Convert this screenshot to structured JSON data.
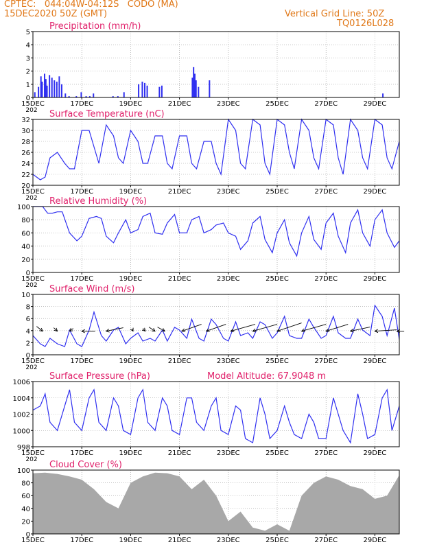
{
  "header": {
    "line1": "CPTEC:   044:04W-04:12S   CODO (MA)",
    "line2": "15DEC2020 50Z (GMT)",
    "right1": "Vertical Grid Line: 50Z",
    "right2": "TQ0126L028"
  },
  "colors": {
    "header": "#e07818",
    "title": "#e0206a",
    "line": "#2f2ff0",
    "bar": "#2f2ff0",
    "cloud": "#a8a8a8",
    "arrow": "#000000",
    "grid": "#999999"
  },
  "x_ticks": [
    "15DEC",
    "17DEC",
    "19DEC",
    "21DEC",
    "23DEC",
    "25DEC",
    "27DEC",
    "29DEC"
  ],
  "x_year_stub": "202",
  "chart_data": [
    {
      "type": "bar",
      "title": "Precipitation (mm/h)",
      "ylim": [
        0,
        5
      ],
      "yticks": [
        "0",
        "1",
        "2",
        "3",
        "4",
        "5"
      ],
      "xlim": [
        0,
        15
      ],
      "x": [
        0.05,
        0.2,
        0.3,
        0.35,
        0.45,
        0.5,
        0.55,
        0.65,
        0.75,
        0.85,
        0.95,
        1.05,
        1.15,
        1.3,
        1.45,
        1.75,
        1.95,
        2.15,
        2.3,
        2.45,
        3.25,
        3.45,
        3.7,
        4.3,
        4.45,
        4.55,
        4.65,
        5.15,
        5.25,
        6.5,
        6.55,
        6.6,
        6.65,
        6.75,
        7.2,
        14.3
      ],
      "values": [
        0.4,
        0.8,
        1.6,
        1.2,
        1.8,
        1.4,
        0.9,
        1.7,
        1.5,
        1.3,
        1.2,
        1.6,
        1.0,
        0.3,
        0.1,
        0.1,
        0.4,
        0.1,
        0.1,
        0.3,
        0.1,
        0.1,
        0.4,
        1.0,
        1.2,
        1.1,
        0.9,
        0.8,
        0.9,
        1.5,
        2.3,
        1.8,
        1.3,
        0.8,
        1.3,
        0.3
      ]
    },
    {
      "type": "line",
      "title": "Surface Temperature (nC)",
      "ylim": [
        20,
        32
      ],
      "yticks": [
        "20",
        "22",
        "24",
        "26",
        "28",
        "30",
        "32"
      ],
      "xlim": [
        0,
        15
      ],
      "x": [
        0,
        0.3,
        0.5,
        0.7,
        1.0,
        1.3,
        1.5,
        1.7,
        2.0,
        2.3,
        2.5,
        2.7,
        3.0,
        3.3,
        3.5,
        3.7,
        4.0,
        4.3,
        4.5,
        4.7,
        5.0,
        5.3,
        5.5,
        5.7,
        6.0,
        6.3,
        6.5,
        6.7,
        7.0,
        7.3,
        7.5,
        7.7,
        8.0,
        8.3,
        8.5,
        8.7,
        9.0,
        9.3,
        9.5,
        9.7,
        10.0,
        10.3,
        10.5,
        10.7,
        11.0,
        11.3,
        11.5,
        11.7,
        12.0,
        12.3,
        12.5,
        12.7,
        13.0,
        13.3,
        13.5,
        13.7,
        14.0,
        14.3,
        14.5,
        14.7,
        15.0
      ],
      "y": [
        22,
        21,
        21.5,
        25,
        26,
        24,
        23,
        23,
        30,
        30,
        27,
        24,
        31,
        29,
        25,
        24,
        30,
        28,
        24,
        24,
        29,
        29,
        24,
        23,
        29,
        29,
        24,
        23,
        28,
        28,
        24,
        22,
        32,
        30,
        24,
        23,
        32,
        31,
        24,
        22,
        32,
        31,
        26,
        23,
        32,
        30,
        25,
        23,
        32,
        31,
        25,
        22,
        32,
        30,
        25,
        23,
        32,
        31,
        25,
        23,
        28
      ]
    },
    {
      "type": "line",
      "title": "Relative Humidity (%)",
      "ylim": [
        0,
        100
      ],
      "yticks": [
        "0",
        "20",
        "40",
        "60",
        "80",
        "100"
      ],
      "xlim": [
        0,
        15
      ],
      "x": [
        0,
        0.4,
        0.6,
        0.8,
        1.0,
        1.2,
        1.5,
        1.8,
        2.0,
        2.3,
        2.6,
        2.8,
        3.0,
        3.3,
        3.5,
        3.8,
        4.0,
        4.3,
        4.5,
        4.8,
        5.0,
        5.3,
        5.5,
        5.8,
        6.0,
        6.3,
        6.5,
        6.8,
        7.0,
        7.3,
        7.5,
        7.8,
        8.0,
        8.3,
        8.5,
        8.8,
        9.0,
        9.3,
        9.5,
        9.8,
        10.0,
        10.3,
        10.5,
        10.8,
        11.0,
        11.3,
        11.5,
        11.8,
        12.0,
        12.3,
        12.5,
        12.8,
        13.0,
        13.3,
        13.5,
        13.8,
        14.0,
        14.3,
        14.5,
        14.8,
        15.0
      ],
      "y": [
        100,
        100,
        90,
        90,
        92,
        92,
        60,
        48,
        55,
        82,
        85,
        82,
        55,
        45,
        60,
        80,
        60,
        65,
        85,
        90,
        60,
        58,
        75,
        88,
        60,
        60,
        80,
        85,
        60,
        65,
        72,
        75,
        60,
        55,
        35,
        48,
        75,
        85,
        50,
        30,
        60,
        80,
        45,
        25,
        60,
        85,
        50,
        35,
        75,
        90,
        55,
        30,
        75,
        95,
        60,
        40,
        80,
        95,
        60,
        38,
        48
      ]
    },
    {
      "type": "line",
      "title": "Surface Wind (m/s)",
      "ylim": [
        0,
        11
      ],
      "yticks": [
        "0",
        "2",
        "4",
        "6",
        "8",
        "10"
      ],
      "xlim": [
        0,
        15
      ],
      "x": [
        0,
        0.3,
        0.5,
        0.7,
        1.0,
        1.3,
        1.5,
        1.8,
        2.0,
        2.3,
        2.5,
        2.8,
        3.0,
        3.3,
        3.5,
        3.8,
        4.0,
        4.3,
        4.5,
        4.8,
        5.0,
        5.3,
        5.5,
        5.8,
        6.0,
        6.3,
        6.5,
        6.8,
        7.0,
        7.3,
        7.5,
        7.8,
        8.0,
        8.3,
        8.5,
        8.8,
        9.0,
        9.3,
        9.5,
        9.8,
        10.0,
        10.3,
        10.5,
        10.8,
        11.0,
        11.3,
        11.5,
        11.8,
        12.0,
        12.3,
        12.5,
        12.8,
        13.0,
        13.3,
        13.5,
        13.8,
        14.0,
        14.3,
        14.5,
        14.8,
        15.0
      ],
      "y": [
        3.5,
        2.0,
        1.5,
        3.0,
        2.0,
        1.5,
        4.5,
        2.0,
        1.5,
        4.5,
        7.8,
        3.5,
        2.5,
        4.5,
        5.0,
        2.0,
        3.0,
        4.0,
        2.5,
        3.0,
        2.5,
        4.5,
        2.5,
        5.0,
        4.5,
        3.0,
        6.5,
        3.0,
        2.5,
        6.5,
        5.5,
        3.0,
        2.5,
        6.0,
        3.5,
        4.0,
        3.0,
        6.0,
        5.5,
        3.0,
        4.0,
        7.0,
        3.5,
        3.0,
        3.0,
        6.5,
        5.0,
        3.0,
        3.5,
        7.0,
        4.0,
        3.0,
        3.0,
        6.5,
        4.5,
        3.5,
        9.0,
        7.0,
        3.5,
        8.5,
        2.8
      ],
      "arrows": [
        {
          "x": 0.4,
          "dx": -0.25,
          "dy": -0.7
        },
        {
          "x": 1.0,
          "dx": -0.15,
          "dy": -0.5
        },
        {
          "x": 1.5,
          "dx": 0.15,
          "dy": -0.4
        },
        {
          "x": 2.0,
          "dx": 0.55,
          "dy": 0.0
        },
        {
          "x": 3.0,
          "dx": 0.7,
          "dy": -0.5
        },
        {
          "x": 4.1,
          "dx": -0.05,
          "dy": -0.35
        },
        {
          "x": 4.6,
          "dx": -0.1,
          "dy": -0.4
        },
        {
          "x": 5.0,
          "dx": -0.25,
          "dy": -0.6
        },
        {
          "x": 5.4,
          "dx": -0.3,
          "dy": -0.6
        },
        {
          "x": 6.1,
          "dx": 0.8,
          "dy": -1.0
        },
        {
          "x": 7.1,
          "dx": 0.8,
          "dy": -1.0
        },
        {
          "x": 8.1,
          "dx": 1.0,
          "dy": -1.0
        },
        {
          "x": 9.0,
          "dx": 1.0,
          "dy": -1.0
        },
        {
          "x": 10.0,
          "dx": 1.0,
          "dy": -1.2
        },
        {
          "x": 11.0,
          "dx": 1.0,
          "dy": -1.0
        },
        {
          "x": 12.0,
          "dx": 0.9,
          "dy": -1.0
        },
        {
          "x": 13.0,
          "dx": 0.8,
          "dy": -0.6
        },
        {
          "x": 14.0,
          "dx": 0.9,
          "dy": -0.2
        },
        {
          "x": 14.9,
          "dx": 0.3,
          "dy": 0.0
        }
      ]
    },
    {
      "type": "line",
      "title": "Surface Pressure (hPa)",
      "annotation": "Model Altitude: 67.9048  m",
      "ylim": [
        998,
        1006
      ],
      "yticks": [
        "998",
        "1000",
        "1002",
        "1004",
        "1006"
      ],
      "xlim": [
        0,
        15
      ],
      "x": [
        0,
        0.3,
        0.5,
        0.7,
        1.0,
        1.3,
        1.5,
        1.7,
        2.0,
        2.3,
        2.5,
        2.7,
        3.0,
        3.3,
        3.5,
        3.7,
        4.0,
        4.3,
        4.5,
        4.7,
        5.0,
        5.3,
        5.5,
        5.7,
        6.0,
        6.3,
        6.5,
        6.7,
        7.0,
        7.3,
        7.5,
        7.7,
        8.0,
        8.3,
        8.5,
        8.7,
        9.0,
        9.3,
        9.5,
        9.7,
        10.0,
        10.3,
        10.5,
        10.7,
        11.0,
        11.3,
        11.5,
        11.7,
        12.0,
        12.3,
        12.5,
        12.7,
        13.0,
        13.3,
        13.5,
        13.7,
        14.0,
        14.3,
        14.5,
        14.7,
        15.0
      ],
      "y": [
        1002.5,
        1003,
        1004.5,
        1001,
        1000,
        1003,
        1005,
        1001,
        1000,
        1004,
        1005,
        1001,
        1000,
        1004,
        1003,
        1000,
        999.5,
        1004,
        1005,
        1001,
        1000,
        1004,
        1003,
        1000,
        999.5,
        1004,
        1004,
        1001,
        1000,
        1003,
        1004,
        1000,
        999.5,
        1003,
        1002.5,
        999,
        998.5,
        1004,
        1002,
        999,
        1000,
        1003,
        1001,
        999.5,
        999,
        1002,
        1001,
        999,
        999,
        1004,
        1002,
        1000,
        998.5,
        1004.5,
        1002,
        999,
        999.5,
        1004,
        1005,
        1000,
        1003
      ]
    },
    {
      "type": "area",
      "title": "Cloud Cover (%)",
      "ylim": [
        0,
        100
      ],
      "yticks": [
        "0",
        "20",
        "40",
        "60",
        "80",
        "100"
      ],
      "xlim": [
        0,
        15
      ],
      "x": [
        0,
        0.5,
        1.0,
        1.5,
        2.0,
        2.5,
        3.0,
        3.5,
        4.0,
        4.5,
        5.0,
        5.5,
        6.0,
        6.5,
        7.0,
        7.5,
        8.0,
        8.5,
        9.0,
        9.5,
        10.0,
        10.5,
        11.0,
        11.5,
        12.0,
        12.5,
        13.0,
        13.5,
        14.0,
        14.5,
        15.0
      ],
      "y": [
        95,
        96,
        94,
        90,
        85,
        70,
        50,
        40,
        80,
        90,
        96,
        95,
        90,
        70,
        85,
        60,
        20,
        35,
        10,
        5,
        15,
        5,
        60,
        80,
        90,
        85,
        75,
        70,
        55,
        60,
        92
      ]
    }
  ]
}
